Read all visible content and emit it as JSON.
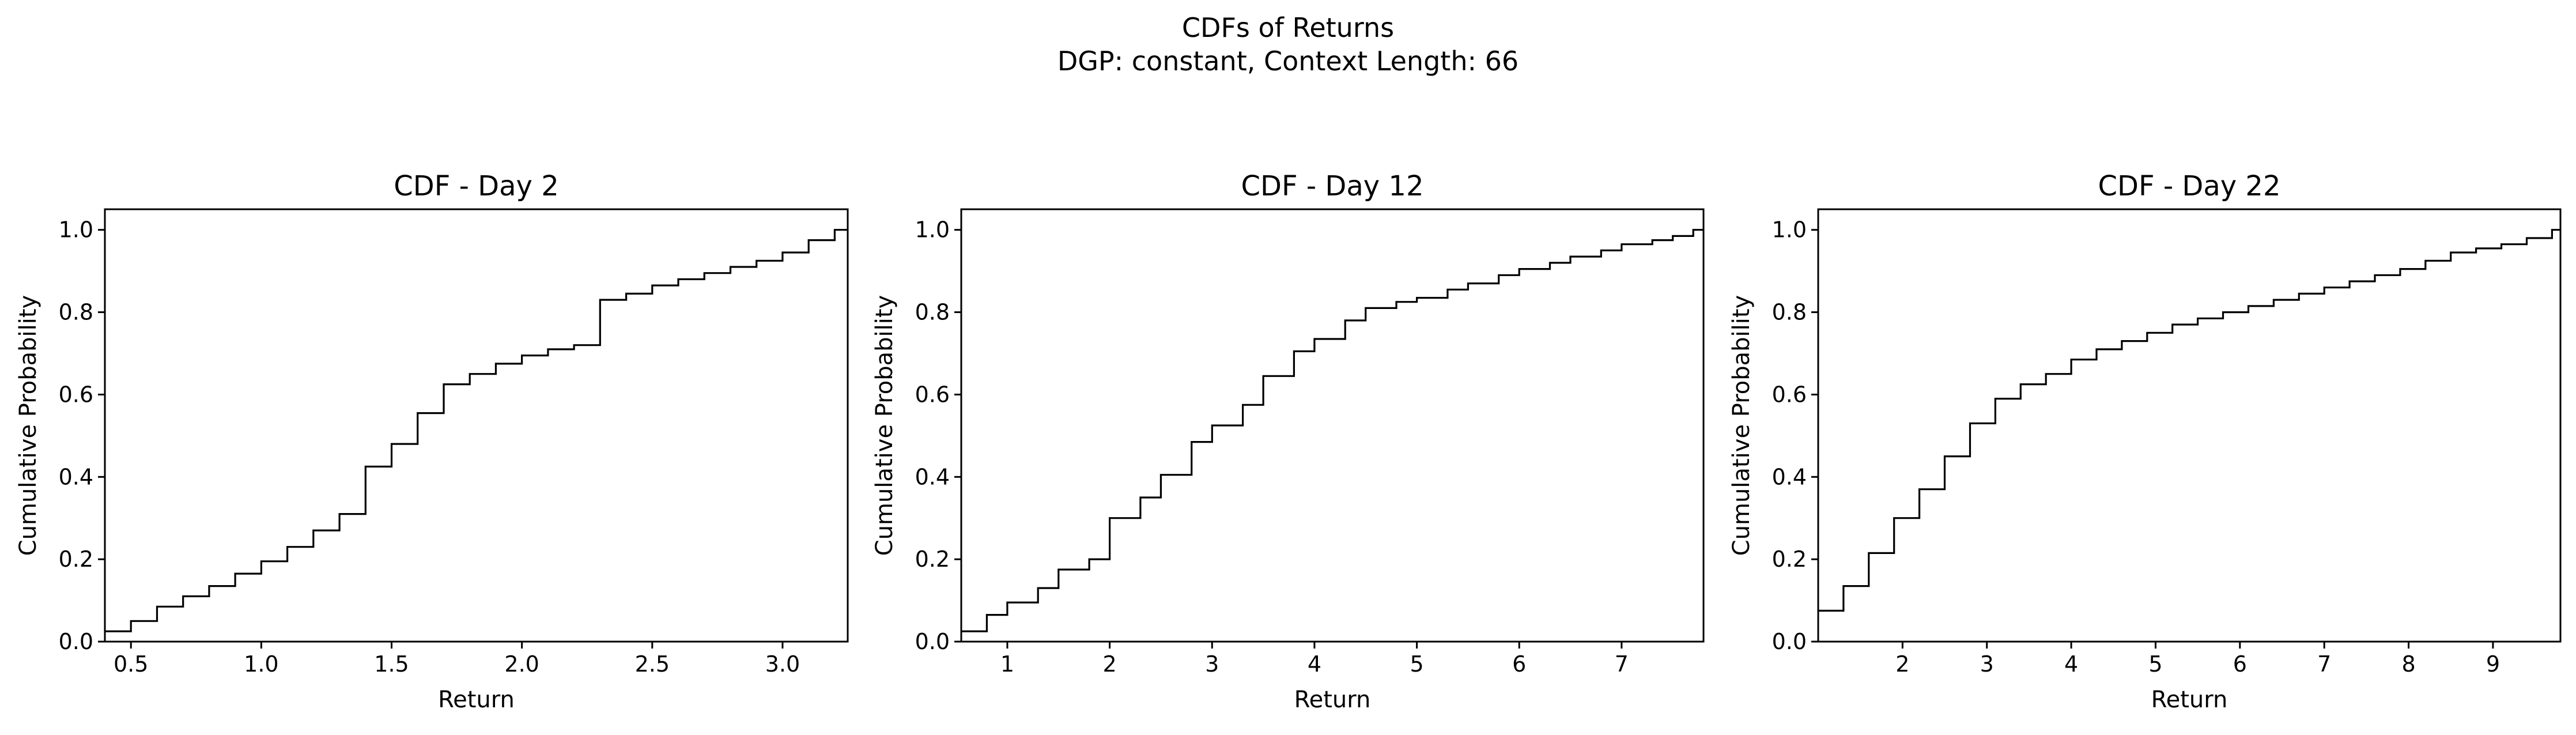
{
  "figure": {
    "title_line1": "CDFs of Returns",
    "title_line2": "DGP: constant, Context Length: 66"
  },
  "chart_data": [
    {
      "type": "line",
      "drawstyle": "steps-post",
      "title": "CDF - Day 2",
      "xlabel": "Return",
      "ylabel": "Cumulative Probability",
      "xlim": [
        0.4,
        3.25
      ],
      "ylim": [
        0.0,
        1.05
      ],
      "xticks": [
        "0.5",
        "1.0",
        "1.5",
        "2.0",
        "2.5",
        "3.0"
      ],
      "yticks": [
        "0.0",
        "0.2",
        "0.4",
        "0.6",
        "0.8",
        "1.0"
      ],
      "grid": false,
      "series": [
        {
          "x": [
            0.4,
            0.5,
            0.6,
            0.7,
            0.8,
            0.9,
            1.0,
            1.1,
            1.2,
            1.3,
            1.4,
            1.5,
            1.6,
            1.7,
            1.8,
            1.9,
            2.0,
            2.1,
            2.2,
            2.3,
            2.4,
            2.5,
            2.6,
            2.7,
            2.8,
            2.9,
            3.0,
            3.1,
            3.2
          ],
          "y": [
            0.025,
            0.05,
            0.085,
            0.11,
            0.135,
            0.165,
            0.195,
            0.23,
            0.27,
            0.31,
            0.425,
            0.48,
            0.555,
            0.625,
            0.65,
            0.675,
            0.695,
            0.71,
            0.72,
            0.83,
            0.845,
            0.865,
            0.88,
            0.895,
            0.91,
            0.925,
            0.945,
            0.975,
            1.0
          ]
        }
      ]
    },
    {
      "type": "line",
      "drawstyle": "steps-post",
      "title": "CDF - Day 12",
      "xlabel": "Return",
      "ylabel": "Cumulative Probability",
      "xlim": [
        0.55,
        7.8
      ],
      "ylim": [
        0.0,
        1.05
      ],
      "xticks": [
        "1",
        "2",
        "3",
        "4",
        "5",
        "6",
        "7"
      ],
      "yticks": [
        "0.0",
        "0.2",
        "0.4",
        "0.6",
        "0.8",
        "1.0"
      ],
      "grid": false,
      "series": [
        {
          "x": [
            0.55,
            0.8,
            1.0,
            1.3,
            1.5,
            1.8,
            2.0,
            2.3,
            2.5,
            2.8,
            3.0,
            3.3,
            3.5,
            3.8,
            4.0,
            4.3,
            4.5,
            4.8,
            5.0,
            5.3,
            5.5,
            5.8,
            6.0,
            6.3,
            6.5,
            6.8,
            7.0,
            7.3,
            7.5,
            7.7
          ],
          "y": [
            0.025,
            0.065,
            0.095,
            0.13,
            0.175,
            0.2,
            0.3,
            0.35,
            0.405,
            0.485,
            0.525,
            0.575,
            0.645,
            0.705,
            0.735,
            0.78,
            0.81,
            0.825,
            0.835,
            0.855,
            0.87,
            0.89,
            0.905,
            0.92,
            0.935,
            0.95,
            0.965,
            0.975,
            0.985,
            1.0
          ]
        }
      ]
    },
    {
      "type": "line",
      "drawstyle": "steps-post",
      "title": "CDF - Day 22",
      "xlabel": "Return",
      "ylabel": "Cumulative Probability",
      "xlim": [
        1.0,
        9.8
      ],
      "ylim": [
        0.0,
        1.05
      ],
      "xticks": [
        "2",
        "3",
        "4",
        "5",
        "6",
        "7",
        "8",
        "9"
      ],
      "yticks": [
        "0.0",
        "0.2",
        "0.4",
        "0.6",
        "0.8",
        "1.0"
      ],
      "grid": false,
      "series": [
        {
          "x": [
            1.0,
            1.3,
            1.6,
            1.9,
            2.2,
            2.5,
            2.8,
            3.1,
            3.4,
            3.7,
            4.0,
            4.3,
            4.6,
            4.9,
            5.2,
            5.5,
            5.8,
            6.1,
            6.4,
            6.7,
            7.0,
            7.3,
            7.6,
            7.9,
            8.2,
            8.5,
            8.8,
            9.1,
            9.4,
            9.7
          ],
          "y": [
            0.075,
            0.135,
            0.215,
            0.3,
            0.37,
            0.45,
            0.53,
            0.59,
            0.625,
            0.65,
            0.685,
            0.71,
            0.73,
            0.75,
            0.77,
            0.785,
            0.8,
            0.815,
            0.83,
            0.845,
            0.86,
            0.875,
            0.89,
            0.905,
            0.925,
            0.945,
            0.955,
            0.965,
            0.98,
            1.0
          ]
        }
      ]
    }
  ]
}
